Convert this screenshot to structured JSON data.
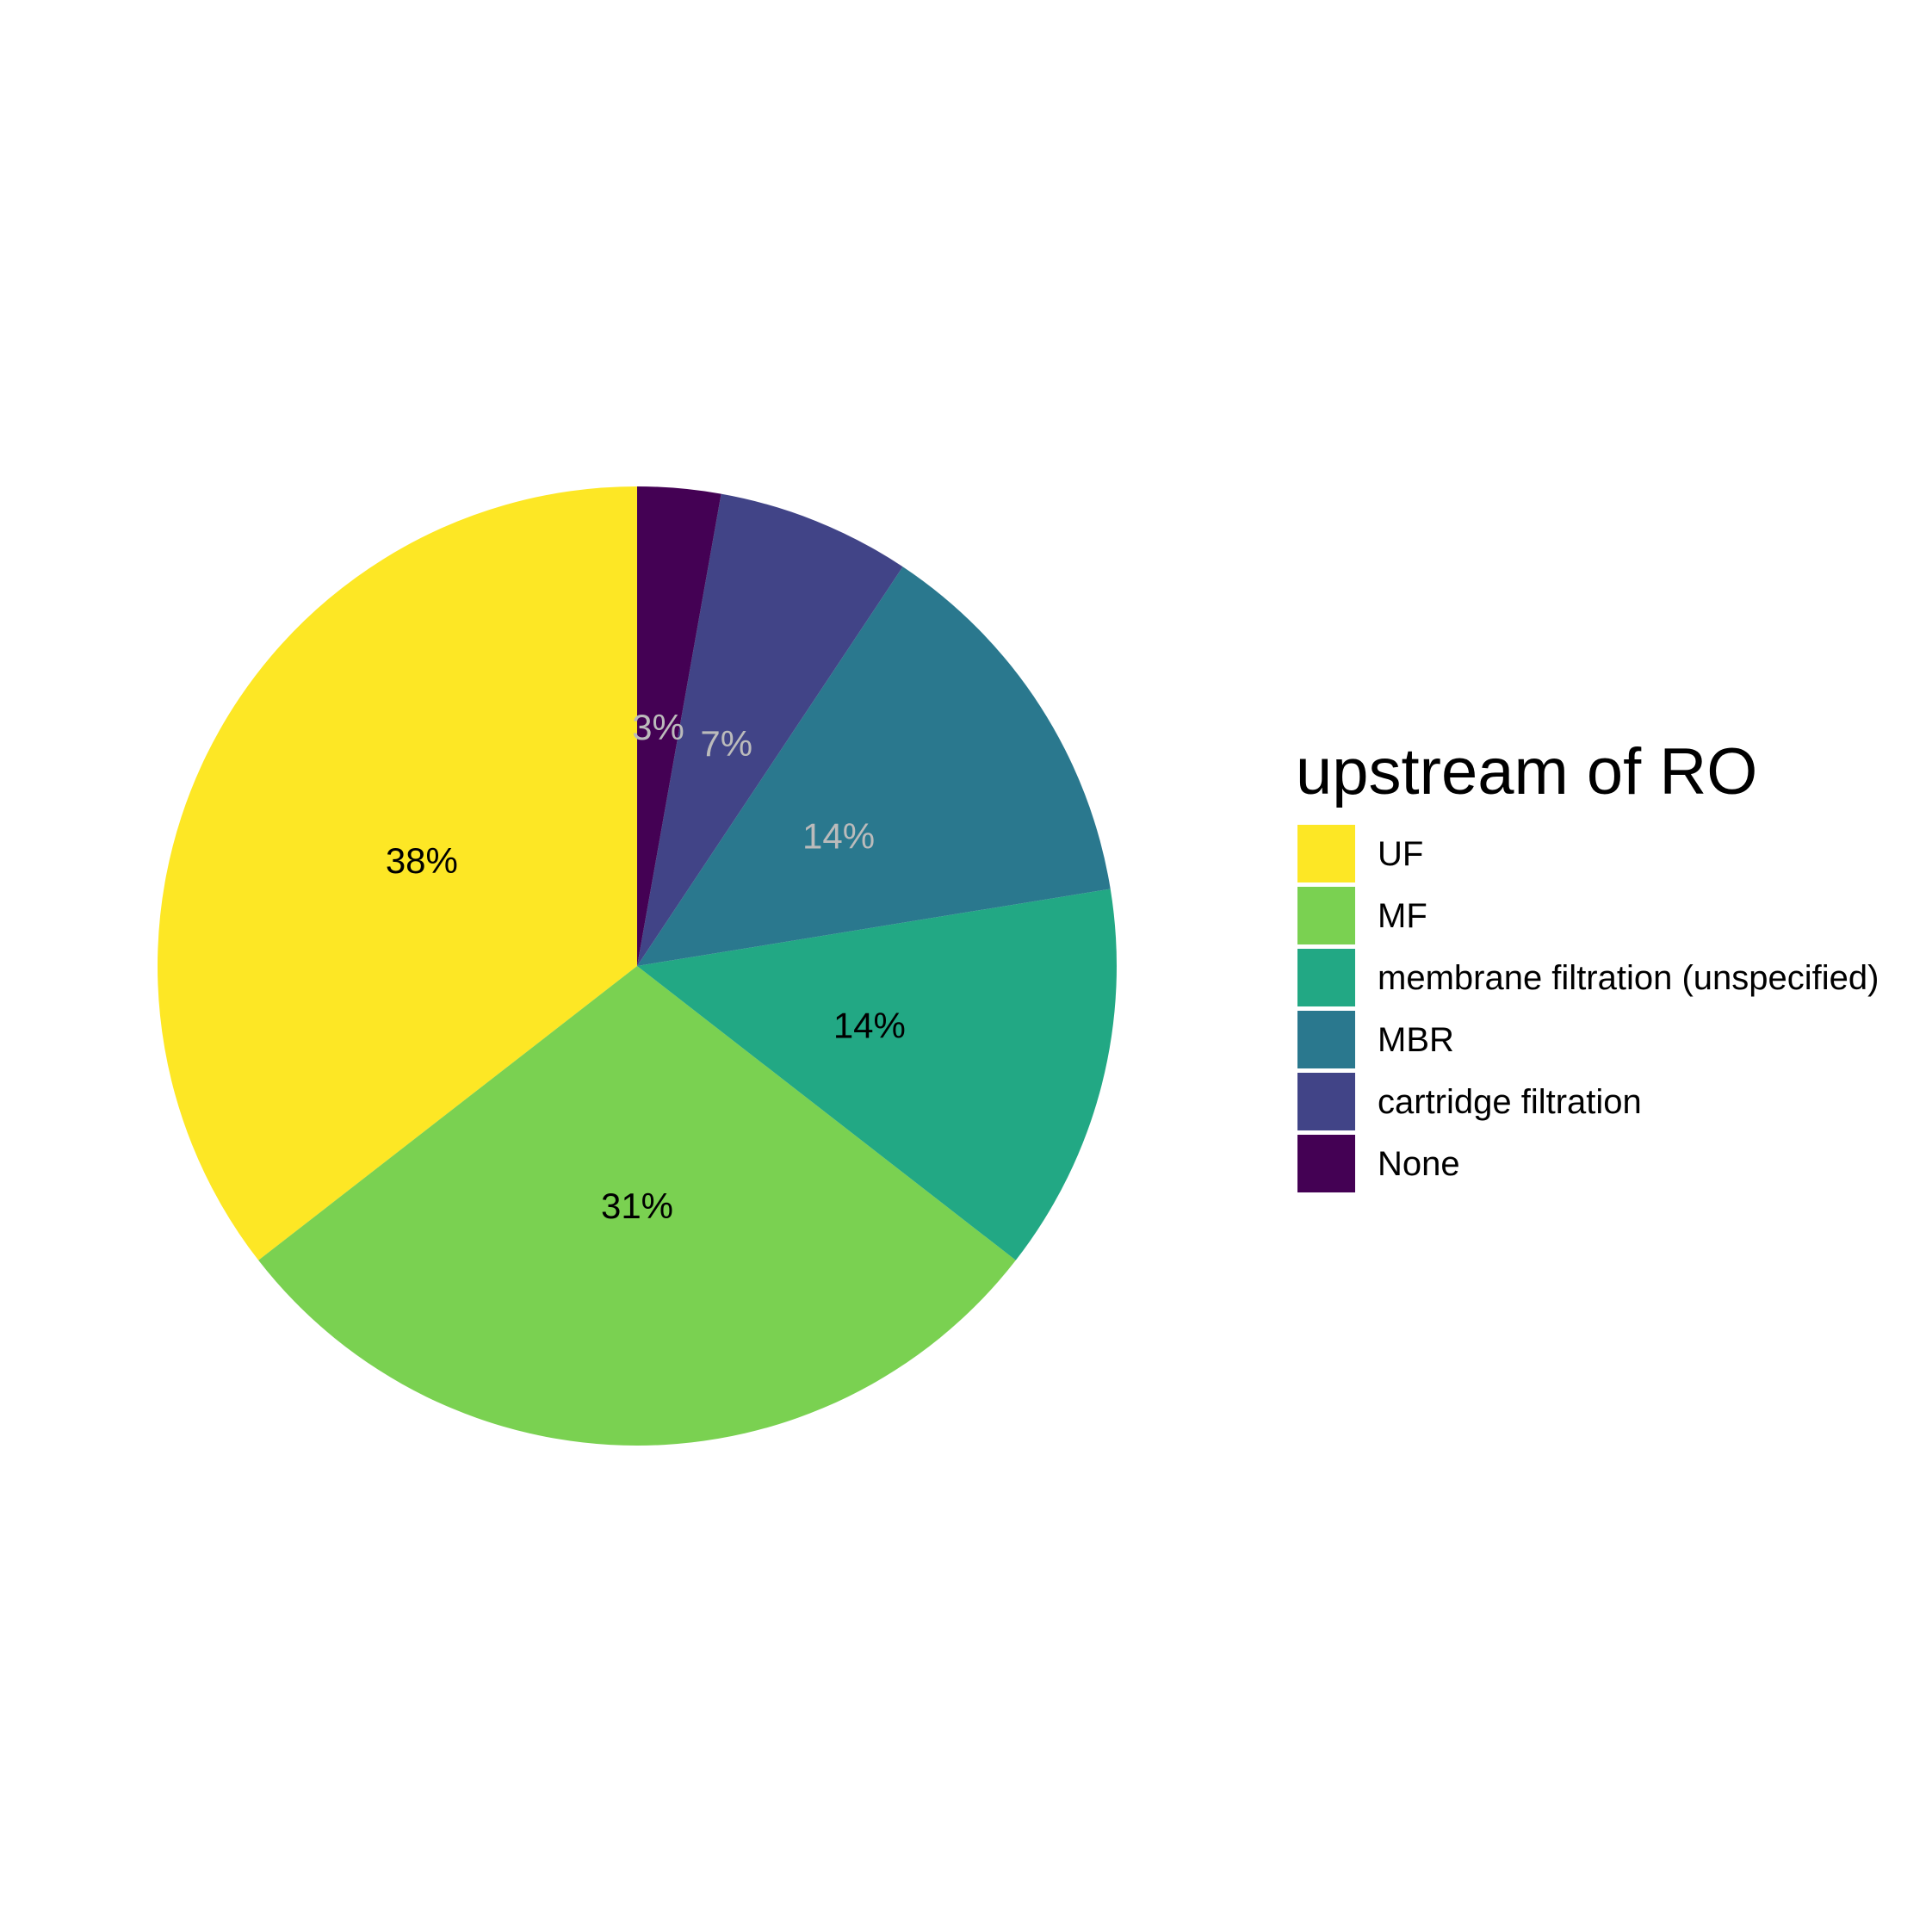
{
  "chart_data": {
    "type": "pie",
    "start": "12 o'clock",
    "direction": "counterclockwise",
    "legend": {
      "title": "upstream of RO",
      "position": "right"
    },
    "slices": [
      {
        "category": "UF",
        "value": 38,
        "label": "38%",
        "color": "#FDE725",
        "label_color": "#000000"
      },
      {
        "category": "MF",
        "value": 31,
        "label": "31%",
        "color": "#7AD151",
        "label_color": "#000000"
      },
      {
        "category": "membrane filtration (unspecified)",
        "value": 14,
        "label": "14%",
        "color": "#22A884",
        "label_color": "#000000"
      },
      {
        "category": "MBR",
        "value": 14,
        "label": "14%",
        "color": "#2A788E",
        "label_color": "#BBBBBB"
      },
      {
        "category": "cartridge filtration",
        "value": 7,
        "label": "7%",
        "color": "#414487",
        "label_color": "#BBBBBB"
      },
      {
        "category": "None",
        "value": 3,
        "label": "3%",
        "color": "#440154",
        "label_color": "#BBBBBB"
      }
    ]
  }
}
